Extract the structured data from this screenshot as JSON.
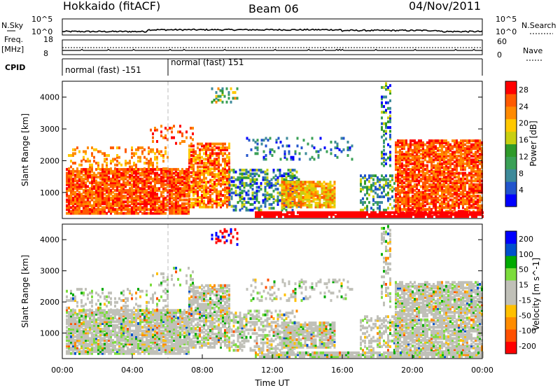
{
  "header": {
    "radar": "Hokkaido (fitACF)",
    "beam": "Beam 06",
    "date": "04/Nov/2011"
  },
  "top_panels": {
    "nsky_label": "N.Sky",
    "nsearch_label": "N.Search",
    "noise_ticks": [
      "10^5",
      "10^0"
    ],
    "freq_label": "Freq.",
    "freq_unit": "[MHz]",
    "freq_ticks": [
      "18",
      "8"
    ],
    "nave_label": "Nave",
    "nave_ticks": [
      "60",
      "0"
    ],
    "cpid_label": "CPID",
    "cpid_segments": [
      "normal (fast) -151",
      "normal (fast) 151"
    ]
  },
  "colors": {
    "power_scale": [
      "#0000ff",
      "#2255cc",
      "#3d8a9a",
      "#3aa056",
      "#2f9a2a",
      "#c8cf10",
      "#ffc800",
      "#ff8a00",
      "#ff5a00",
      "#ff0000"
    ],
    "velocity_scale": [
      "#ff0000",
      "#ff5000",
      "#ff8c00",
      "#ffc000",
      "#c0c0b8",
      "#c0c0b8",
      "#7cdc3c",
      "#00aa00",
      "#0050cc",
      "#0000ff"
    ]
  },
  "chart_data": [
    {
      "type": "heatmap",
      "panel": "power",
      "xlabel": "",
      "ylabel": "Slant Range [km]",
      "xlim": [
        0,
        24
      ],
      "ylim": [
        180,
        4500
      ],
      "yticks": [
        "1000",
        "2000",
        "3000",
        "4000"
      ],
      "colorbar_label": "Power [dB]",
      "colorbar_ticks": [
        "28",
        "24",
        "20",
        "16",
        "12",
        "8",
        "4"
      ],
      "clim": [
        0,
        30
      ]
    },
    {
      "type": "heatmap",
      "panel": "velocity",
      "xlabel": "Time UT",
      "ylabel": "Slant Range [km]",
      "xlim": [
        0,
        24
      ],
      "ylim": [
        180,
        4500
      ],
      "yticks": [
        "1000",
        "2000",
        "3000",
        "4000"
      ],
      "xticks": [
        "00:00",
        "04:00",
        "08:00",
        "12:00",
        "16:00",
        "20:00",
        "00:00"
      ],
      "colorbar_label": "Velocity [m s^-1]",
      "colorbar_ticks": [
        "200",
        "100",
        "50",
        "15",
        "-15",
        "-50",
        "-100",
        "-200"
      ],
      "clim": [
        -250,
        250
      ]
    }
  ]
}
